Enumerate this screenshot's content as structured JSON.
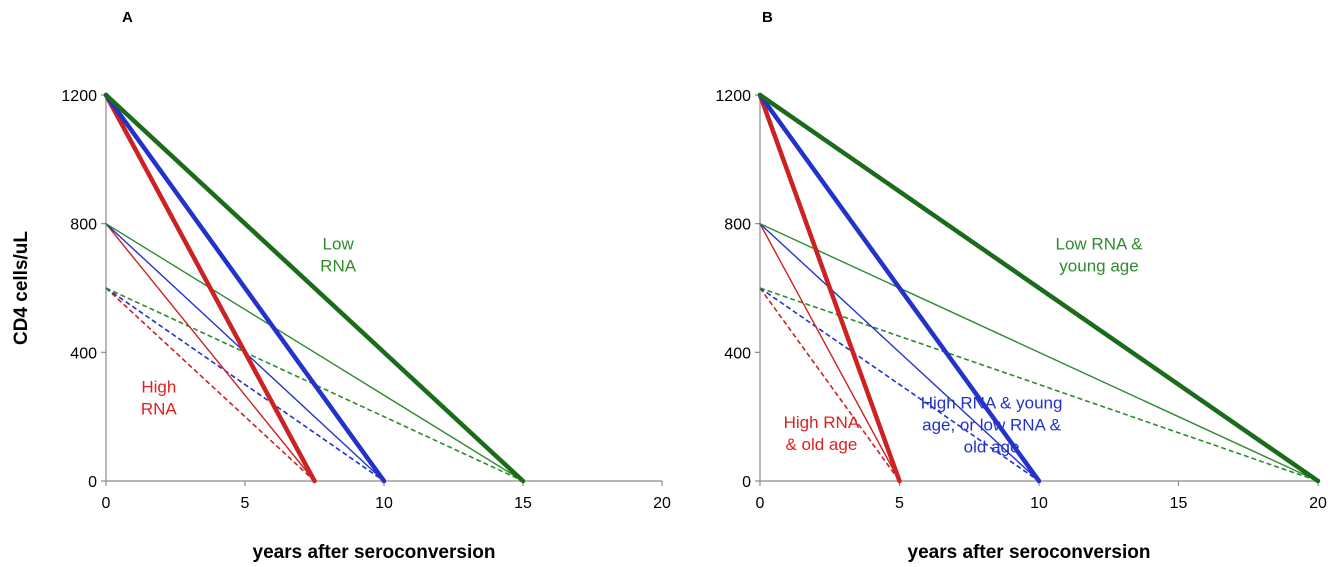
{
  "chart_data": [
    {
      "type": "line",
      "panel": "A",
      "xlabel": "years after seroconversion",
      "ylabel": "CD4 cells/uL",
      "xlim": [
        0,
        20
      ],
      "ylim": [
        0,
        1200
      ],
      "xticks": [
        0,
        5,
        10,
        15,
        20
      ],
      "yticks": [
        0,
        400,
        800,
        1200
      ],
      "grid": false,
      "series": [
        {
          "color": "#cc2222",
          "style": "thick",
          "x": [
            0,
            7.5
          ],
          "y": [
            1200,
            0
          ]
        },
        {
          "color": "#2233cc",
          "style": "thick",
          "x": [
            0,
            10
          ],
          "y": [
            1200,
            0
          ]
        },
        {
          "color": "#1a6b1a",
          "style": "thick",
          "x": [
            0,
            15
          ],
          "y": [
            1200,
            0
          ]
        },
        {
          "color": "#cc2222",
          "style": "thin",
          "x": [
            0,
            7.5
          ],
          "y": [
            800,
            0
          ]
        },
        {
          "color": "#2233cc",
          "style": "thin",
          "x": [
            0,
            10
          ],
          "y": [
            800,
            0
          ]
        },
        {
          "color": "#2e8b2e",
          "style": "thin",
          "x": [
            0,
            15
          ],
          "y": [
            800,
            0
          ]
        },
        {
          "color": "#cc2222",
          "style": "dashed",
          "x": [
            0,
            7.5
          ],
          "y": [
            600,
            0
          ]
        },
        {
          "color": "#2233cc",
          "style": "dashed",
          "x": [
            0,
            10
          ],
          "y": [
            600,
            0
          ]
        },
        {
          "color": "#2e8b2e",
          "style": "dashed",
          "x": [
            0,
            15
          ],
          "y": [
            600,
            0
          ]
        }
      ],
      "annotations": [
        {
          "lines": [
            "Low",
            "RNA"
          ],
          "color": "#2e8b2e",
          "x": 8.35,
          "y": 720
        },
        {
          "lines": [
            "High",
            "RNA"
          ],
          "color": "#e02020",
          "x": 1.9,
          "y": 275
        }
      ]
    },
    {
      "type": "line",
      "panel": "B",
      "xlabel": "years after seroconversion",
      "ylabel": "",
      "xlim": [
        0,
        20
      ],
      "ylim": [
        0,
        1200
      ],
      "xticks": [
        0,
        5,
        10,
        15,
        20
      ],
      "yticks": [
        0,
        400,
        800,
        1200
      ],
      "grid": false,
      "series": [
        {
          "color": "#cc2222",
          "style": "thick",
          "x": [
            0,
            5
          ],
          "y": [
            1200,
            0
          ]
        },
        {
          "color": "#2233cc",
          "style": "thick",
          "x": [
            0,
            10
          ],
          "y": [
            1200,
            0
          ]
        },
        {
          "color": "#1a6b1a",
          "style": "thick",
          "x": [
            0,
            20
          ],
          "y": [
            1200,
            0
          ]
        },
        {
          "color": "#cc2222",
          "style": "thin",
          "x": [
            0,
            5
          ],
          "y": [
            800,
            0
          ]
        },
        {
          "color": "#2233cc",
          "style": "thin",
          "x": [
            0,
            10
          ],
          "y": [
            800,
            0
          ]
        },
        {
          "color": "#2e8b2e",
          "style": "thin",
          "x": [
            0,
            20
          ],
          "y": [
            800,
            0
          ]
        },
        {
          "color": "#cc2222",
          "style": "dashed",
          "x": [
            0,
            5
          ],
          "y": [
            600,
            0
          ]
        },
        {
          "color": "#2233cc",
          "style": "dashed",
          "x": [
            0,
            10
          ],
          "y": [
            600,
            0
          ]
        },
        {
          "color": "#2e8b2e",
          "style": "dashed",
          "x": [
            0,
            20
          ],
          "y": [
            600,
            0
          ]
        }
      ],
      "annotations": [
        {
          "lines": [
            "Low RNA &",
            "young age"
          ],
          "color": "#2e8b2e",
          "x": 12.15,
          "y": 720
        },
        {
          "lines": [
            "High RNA",
            "& old age"
          ],
          "color": "#e02020",
          "x": 2.2,
          "y": 165
        },
        {
          "lines": [
            "High RNA & young",
            "age, or low RNA &",
            "old age"
          ],
          "color": "#2233cc",
          "x": 8.3,
          "y": 225
        }
      ]
    }
  ]
}
